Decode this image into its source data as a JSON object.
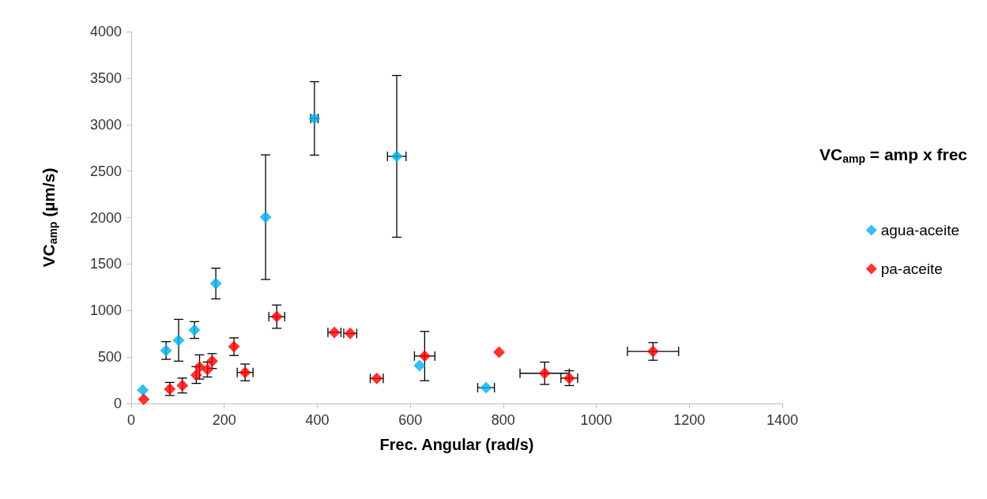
{
  "chart_data": {
    "type": "scatter",
    "xlabel": "Frec. Angular (rad/s)",
    "ylabel": "VC$_{amp}$ (µm/s)",
    "annotations": [
      "VC$_{amp}$ = amp x frec"
    ],
    "xlim": [
      0,
      1400
    ],
    "xticks": [
      0,
      200,
      400,
      600,
      800,
      1000,
      1200,
      1400
    ],
    "ylim": [
      0,
      4000
    ],
    "yticks": [
      0,
      500,
      1000,
      1500,
      2000,
      2500,
      3000,
      3500,
      4000
    ],
    "grid": false,
    "legend": "right",
    "marker": "diamond",
    "series": [
      {
        "name": "agua-aceite",
        "color": "#00b0f0",
        "x": [
          25,
          75,
          102,
          136,
          182,
          289,
          394,
          571,
          620,
          763
        ],
        "values": [
          145,
          570,
          680,
          790,
          1290,
          2004,
          3066,
          2658,
          408,
          170
        ],
        "errors": [
          null,
          95,
          225,
          90,
          165,
          670,
          395,
          870,
          null,
          null
        ],
        "xerrors": [
          null,
          null,
          null,
          null,
          null,
          null,
          8,
          20,
          null,
          18
        ]
      },
      {
        "name": "pa-aceite",
        "color": "#ff0000",
        "x": [
          27,
          83,
          110,
          140,
          147,
          164,
          174,
          221,
          245,
          313,
          437,
          471,
          528,
          631,
          791,
          889,
          942,
          1122
        ],
        "values": [
          45,
          156,
          193,
          306,
          393,
          365,
          456,
          611,
          334,
          934,
          764,
          753,
          269,
          510,
          552,
          325,
          272,
          560
        ],
        "errors": [
          null,
          70,
          80,
          90,
          130,
          80,
          80,
          95,
          90,
          125,
          null,
          null,
          null,
          265,
          null,
          120,
          80,
          95
        ],
        "xerrors": [
          null,
          null,
          null,
          null,
          null,
          null,
          null,
          null,
          17,
          17,
          14,
          14,
          14,
          22,
          null,
          53,
          18,
          55
        ]
      }
    ]
  }
}
